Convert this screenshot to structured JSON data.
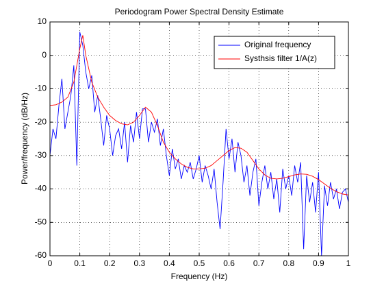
{
  "chart_data": {
    "type": "line",
    "title": "Periodogram Power Spectral Density Estimate",
    "xlabel": "Frequency (Hz)",
    "ylabel": "Power/frequency (dB/Hz)",
    "xlim": [
      0,
      1
    ],
    "ylim": [
      -60,
      10
    ],
    "xticks": [
      0,
      0.1,
      0.2,
      0.3,
      0.4,
      0.5,
      0.6,
      0.7,
      0.8,
      0.9,
      1
    ],
    "yticks": [
      -60,
      -50,
      -40,
      -30,
      -20,
      -10,
      0,
      10
    ],
    "grid": true,
    "legend": "upper right",
    "series": [
      {
        "name": "Original frequency",
        "color": "#0000ff",
        "x": [
          0,
          0.01,
          0.02,
          0.03,
          0.04,
          0.05,
          0.06,
          0.07,
          0.08,
          0.09,
          0.1,
          0.11,
          0.12,
          0.13,
          0.14,
          0.15,
          0.16,
          0.17,
          0.18,
          0.19,
          0.2,
          0.21,
          0.22,
          0.23,
          0.24,
          0.25,
          0.26,
          0.27,
          0.28,
          0.29,
          0.3,
          0.31,
          0.32,
          0.33,
          0.34,
          0.35,
          0.36,
          0.37,
          0.38,
          0.39,
          0.4,
          0.41,
          0.42,
          0.43,
          0.44,
          0.45,
          0.46,
          0.47,
          0.48,
          0.49,
          0.5,
          0.51,
          0.52,
          0.53,
          0.54,
          0.55,
          0.56,
          0.57,
          0.58,
          0.59,
          0.6,
          0.61,
          0.62,
          0.63,
          0.64,
          0.65,
          0.66,
          0.67,
          0.68,
          0.69,
          0.7,
          0.71,
          0.72,
          0.73,
          0.74,
          0.75,
          0.76,
          0.77,
          0.78,
          0.79,
          0.8,
          0.81,
          0.82,
          0.83,
          0.84,
          0.85,
          0.86,
          0.87,
          0.88,
          0.89,
          0.9,
          0.91,
          0.92,
          0.93,
          0.94,
          0.95,
          0.96,
          0.97,
          0.98,
          0.99,
          1
        ],
        "values": [
          -30,
          -22,
          -25,
          -15,
          -7,
          -22,
          -17,
          -12,
          -3,
          -33,
          7,
          3,
          -5,
          -10,
          -6,
          -17,
          -12,
          -19,
          -27,
          -18,
          -22,
          -30,
          -24,
          -22,
          -28,
          -20,
          -32,
          -21,
          -26,
          -17,
          -25,
          -16,
          -16,
          -26,
          -20,
          -23,
          -19,
          -27,
          -22,
          -30,
          -36,
          -28,
          -34,
          -31,
          -37,
          -33,
          -35,
          -32,
          -37,
          -34,
          -30,
          -38,
          -33,
          -36,
          -40,
          -34,
          -44,
          -52,
          -38,
          -22,
          -31,
          -25,
          -35,
          -26,
          -30,
          -38,
          -33,
          -42,
          -35,
          -31,
          -45,
          -38,
          -33,
          -40,
          -35,
          -43,
          -37,
          -47,
          -34,
          -40,
          -36,
          -42,
          -33,
          -38,
          -32,
          -58,
          -36,
          -44,
          -38,
          -47,
          -35,
          -60,
          -39,
          -45,
          -38,
          -43,
          -40,
          -46,
          -41,
          -40,
          -44
        ]
      },
      {
        "name": "Systhsis filter 1/A(z)",
        "color": "#ff0000",
        "x": [
          0,
          0.02,
          0.04,
          0.06,
          0.08,
          0.1,
          0.11,
          0.12,
          0.14,
          0.16,
          0.18,
          0.2,
          0.22,
          0.24,
          0.26,
          0.28,
          0.3,
          0.32,
          0.34,
          0.36,
          0.38,
          0.4,
          0.42,
          0.44,
          0.46,
          0.48,
          0.5,
          0.52,
          0.54,
          0.56,
          0.58,
          0.6,
          0.62,
          0.64,
          0.66,
          0.68,
          0.7,
          0.72,
          0.74,
          0.76,
          0.78,
          0.8,
          0.82,
          0.84,
          0.86,
          0.88,
          0.9,
          0.92,
          0.94,
          0.96,
          0.98,
          1
        ],
        "values": [
          -15,
          -14.8,
          -14,
          -12.5,
          -8,
          2,
          6,
          0,
          -8,
          -12.5,
          -15.5,
          -18,
          -19.5,
          -20.5,
          -20.8,
          -20,
          -18,
          -15.5,
          -17,
          -21,
          -26,
          -29,
          -31,
          -32.5,
          -33.5,
          -34,
          -34,
          -33.8,
          -33,
          -31.5,
          -30,
          -28.5,
          -27.6,
          -27.8,
          -29,
          -31.5,
          -34,
          -35.8,
          -36.8,
          -37,
          -36.8,
          -36.3,
          -35.8,
          -35.5,
          -35.6,
          -36.2,
          -37.2,
          -38.5,
          -39.8,
          -40.8,
          -41.5,
          -41.8
        ]
      }
    ]
  }
}
